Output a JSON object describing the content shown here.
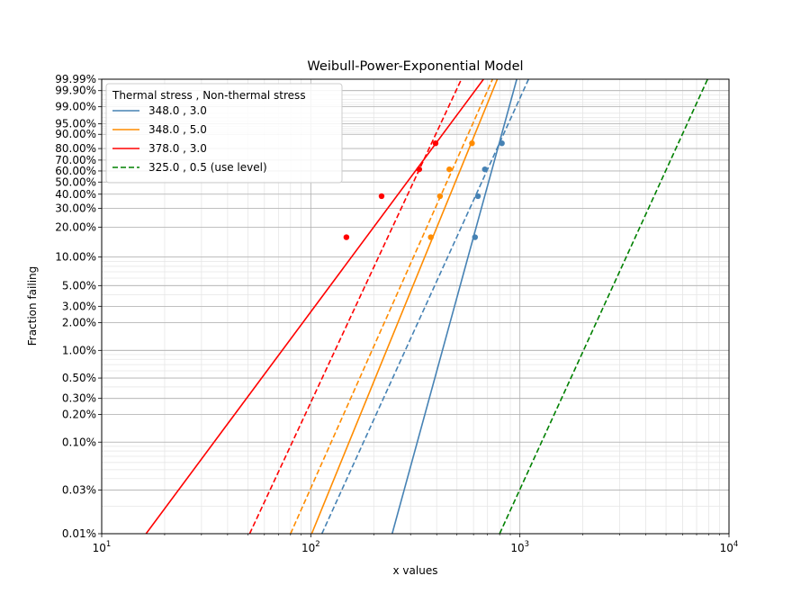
{
  "chart_data": {
    "type": "line",
    "title": "Weibull-Power-Exponential Model",
    "xlabel": "x values",
    "ylabel": "Fraction failing",
    "x_scale": "log",
    "y_scale": "weibull",
    "xlim": [
      10,
      10000
    ],
    "ylim": [
      0.0001,
      0.9999
    ],
    "x_ticks": [
      {
        "value": 10,
        "base": "10",
        "exp": "1"
      },
      {
        "value": 100,
        "base": "10",
        "exp": "2"
      },
      {
        "value": 1000,
        "base": "10",
        "exp": "3"
      },
      {
        "value": 10000,
        "base": "10",
        "exp": "4"
      }
    ],
    "y_ticks": [
      {
        "value": 0.0001,
        "label": "0.01%"
      },
      {
        "value": 0.0003,
        "label": "0.03%"
      },
      {
        "value": 0.001,
        "label": "0.10%"
      },
      {
        "value": 0.002,
        "label": "0.20%"
      },
      {
        "value": 0.003,
        "label": "0.30%"
      },
      {
        "value": 0.005,
        "label": "0.50%"
      },
      {
        "value": 0.01,
        "label": "1.00%"
      },
      {
        "value": 0.02,
        "label": "2.00%"
      },
      {
        "value": 0.03,
        "label": "3.00%"
      },
      {
        "value": 0.05,
        "label": "5.00%"
      },
      {
        "value": 0.1,
        "label": "10.00%"
      },
      {
        "value": 0.2,
        "label": "20.00%"
      },
      {
        "value": 0.3,
        "label": "30.00%"
      },
      {
        "value": 0.4,
        "label": "40.00%"
      },
      {
        "value": 0.5,
        "label": "50.00%"
      },
      {
        "value": 0.6,
        "label": "60.00%"
      },
      {
        "value": 0.7,
        "label": "70.00%"
      },
      {
        "value": 0.8,
        "label": "80.00%"
      },
      {
        "value": 0.9,
        "label": "90.00%"
      },
      {
        "value": 0.95,
        "label": "95.00%"
      },
      {
        "value": 0.99,
        "label": "99.00%"
      },
      {
        "value": 0.999,
        "label": "99.90%"
      },
      {
        "value": 0.9999,
        "label": "99.99%"
      }
    ],
    "grid": true,
    "legend": {
      "title": "Thermal stress , Non-thermal stress",
      "placement": "top-left"
    },
    "series": [
      {
        "name": "348.0 , 3.0",
        "color": "#4682b4",
        "dash": "solid",
        "line": [
          [
            245,
            0.0001
          ],
          [
            966,
            0.9999
          ]
        ],
        "points": [
          [
            610,
            0.159
          ],
          [
            630,
            0.385
          ],
          [
            680,
            0.615
          ],
          [
            820,
            0.841
          ]
        ]
      },
      {
        "name": "348.0 , 5.0",
        "color": "#ff8c00",
        "dash": "solid",
        "line": [
          [
            101,
            0.0001
          ],
          [
            780,
            0.9999
          ]
        ],
        "points": [
          [
            375,
            0.159
          ],
          [
            415,
            0.385
          ],
          [
            460,
            0.615
          ],
          [
            590,
            0.841
          ]
        ]
      },
      {
        "name": "378.0 , 3.0",
        "color": "#ff0000",
        "dash": "solid",
        "line": [
          [
            16.3,
            0.0001
          ],
          [
            670,
            0.9999
          ]
        ],
        "points": [
          [
            148,
            0.159
          ],
          [
            218,
            0.385
          ],
          [
            330,
            0.615
          ],
          [
            395,
            0.841
          ]
        ]
      },
      {
        "name": "",
        "color": "#4682b4",
        "dash": "dashed",
        "line": [
          [
            113,
            0.0001
          ],
          [
            1100,
            0.9999
          ]
        ],
        "points": []
      },
      {
        "name": "",
        "color": "#ff8c00",
        "dash": "dashed",
        "line": [
          [
            80,
            0.0001
          ],
          [
            740,
            0.9999
          ]
        ],
        "points": []
      },
      {
        "name": "",
        "color": "#ff0000",
        "dash": "dashed",
        "line": [
          [
            51,
            0.0001
          ],
          [
            525,
            0.9999
          ]
        ],
        "points": []
      },
      {
        "name": "325.0 , 0.5 (use level)",
        "color": "#008000",
        "dash": "dashed",
        "line": [
          [
            800,
            0.0001
          ],
          [
            7900,
            0.9999
          ]
        ],
        "points": []
      }
    ]
  }
}
